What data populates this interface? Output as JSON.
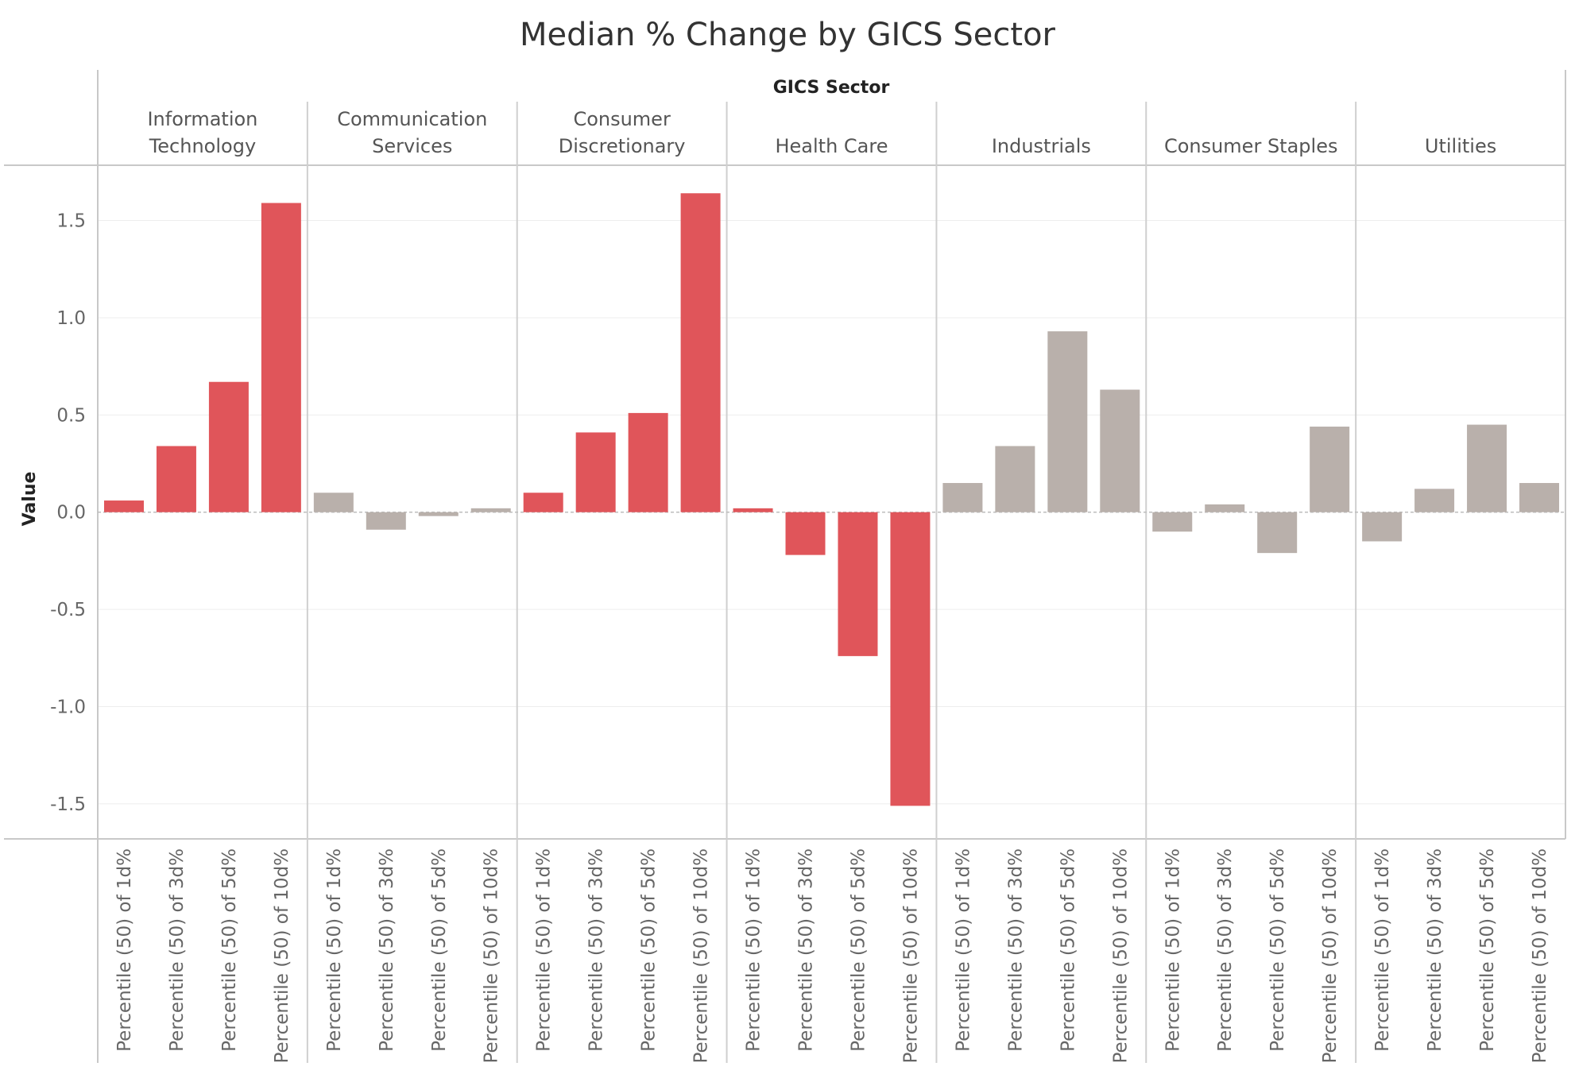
{
  "chart_data": {
    "type": "bar",
    "title": "Median % Change by GICS Sector",
    "column_header": "GICS Sector",
    "ylabel": "Value",
    "ylim": [
      -1.68,
      1.78
    ],
    "yticks": [
      1.5,
      1.0,
      0.5,
      0.0,
      -0.5,
      -1.0,
      -1.5
    ],
    "ytick_labels": [
      "1.5",
      "1.0",
      "0.5",
      "0.0",
      "-0.5",
      "-1.0",
      "-1.5"
    ],
    "grid": true,
    "categories": [
      "Percentile (50) of 1d%",
      "Percentile (50) of 3d%",
      "Percentile (50) of 5d%",
      "Percentile (50) of 10d%"
    ],
    "colors": {
      "highlight": "#e0555a",
      "muted": "#b9b0ab"
    },
    "panels": [
      {
        "sector_lines": [
          "Information",
          "Technology"
        ],
        "highlight": true,
        "values": [
          0.06,
          0.34,
          0.67,
          1.59
        ]
      },
      {
        "sector_lines": [
          "Communication",
          "Services"
        ],
        "highlight": false,
        "values": [
          0.1,
          -0.09,
          -0.02,
          0.02
        ]
      },
      {
        "sector_lines": [
          "Consumer",
          "Discretionary"
        ],
        "highlight": true,
        "values": [
          0.1,
          0.41,
          0.51,
          1.64
        ]
      },
      {
        "sector_lines": [
          "Health Care"
        ],
        "highlight": true,
        "values": [
          0.02,
          -0.22,
          -0.74,
          -1.51
        ]
      },
      {
        "sector_lines": [
          "Industrials"
        ],
        "highlight": false,
        "values": [
          0.15,
          0.34,
          0.93,
          0.63
        ]
      },
      {
        "sector_lines": [
          "Consumer Staples"
        ],
        "highlight": false,
        "values": [
          -0.1,
          0.04,
          -0.21,
          0.44
        ]
      },
      {
        "sector_lines": [
          "Utilities"
        ],
        "highlight": false,
        "values": [
          -0.15,
          0.12,
          0.45,
          0.15
        ]
      }
    ]
  }
}
